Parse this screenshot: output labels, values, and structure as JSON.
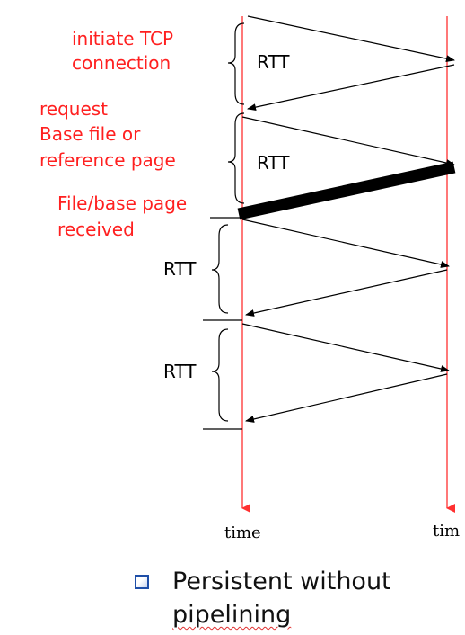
{
  "labels": {
    "initiate": [
      "initiate TCP",
      "connection"
    ],
    "request": [
      "request",
      "Base file or",
      "reference page"
    ],
    "received": [
      "File/base page",
      "received"
    ],
    "rtt": [
      "RTT",
      "RTT",
      "RTT",
      "RTT"
    ],
    "time_left": "time",
    "time_right": "tim"
  },
  "caption": {
    "line1": "Persistent without",
    "line2": "pipelining"
  },
  "colors": {
    "timeline": "#ff3030",
    "label_red": "#ff2020",
    "arrow": "#000000",
    "bullet": "#1f4fa8"
  }
}
